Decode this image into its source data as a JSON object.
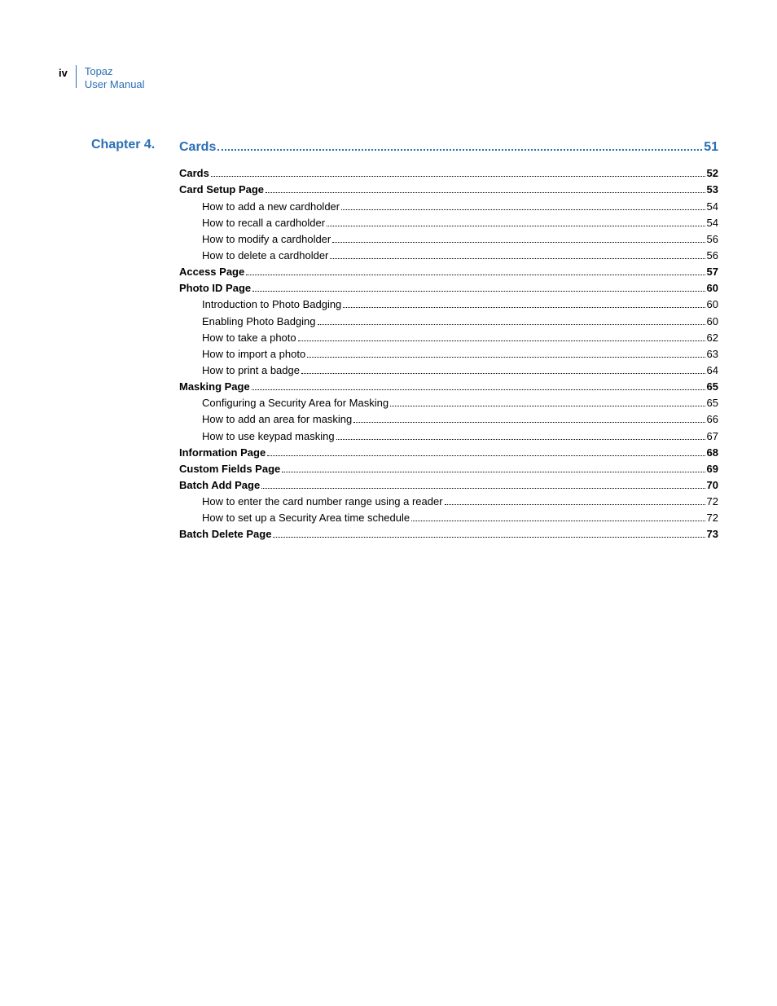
{
  "header": {
    "page_number": "iv",
    "product": "Topaz",
    "doc": "User Manual"
  },
  "chapter": {
    "label": "Chapter 4.",
    "title": "Cards",
    "page": "51",
    "accent_color": "#2b6fb5"
  },
  "entries": [
    {
      "level": 1,
      "label": "Cards",
      "page": "52"
    },
    {
      "level": 1,
      "label": "Card Setup Page",
      "page": "53"
    },
    {
      "level": 2,
      "label": "How to add a new cardholder",
      "page": "54"
    },
    {
      "level": 2,
      "label": "How to recall a cardholder",
      "page": "54"
    },
    {
      "level": 2,
      "label": "How to modify a cardholder",
      "page": "56"
    },
    {
      "level": 2,
      "label": "How to delete a cardholder",
      "page": "56"
    },
    {
      "level": 1,
      "label": "Access Page",
      "page": "57"
    },
    {
      "level": 1,
      "label": "Photo ID Page",
      "page": "60"
    },
    {
      "level": 2,
      "label": "Introduction to Photo Badging",
      "page": "60"
    },
    {
      "level": 2,
      "label": "Enabling Photo Badging",
      "page": "60"
    },
    {
      "level": 2,
      "label": "How to take a photo",
      "page": "62"
    },
    {
      "level": 2,
      "label": "How to import a photo",
      "page": "63"
    },
    {
      "level": 2,
      "label": "How to print a badge",
      "page": "64"
    },
    {
      "level": 1,
      "label": "Masking Page",
      "page": "65"
    },
    {
      "level": 2,
      "label": "Configuring a Security Area for Masking",
      "page": "65"
    },
    {
      "level": 2,
      "label": "How to add an area for masking",
      "page": "66"
    },
    {
      "level": 2,
      "label": "How to use keypad masking",
      "page": "67"
    },
    {
      "level": 1,
      "label": "Information Page",
      "page": "68"
    },
    {
      "level": 1,
      "label": "Custom Fields Page",
      "page": "69"
    },
    {
      "level": 1,
      "label": "Batch Add Page",
      "page": "70"
    },
    {
      "level": 2,
      "label": "How to enter the card number range using a reader",
      "page": "72"
    },
    {
      "level": 2,
      "label": "How to set up a Security Area time schedule",
      "page": "72"
    },
    {
      "level": 1,
      "label": "Batch Delete Page",
      "page": "73"
    }
  ]
}
